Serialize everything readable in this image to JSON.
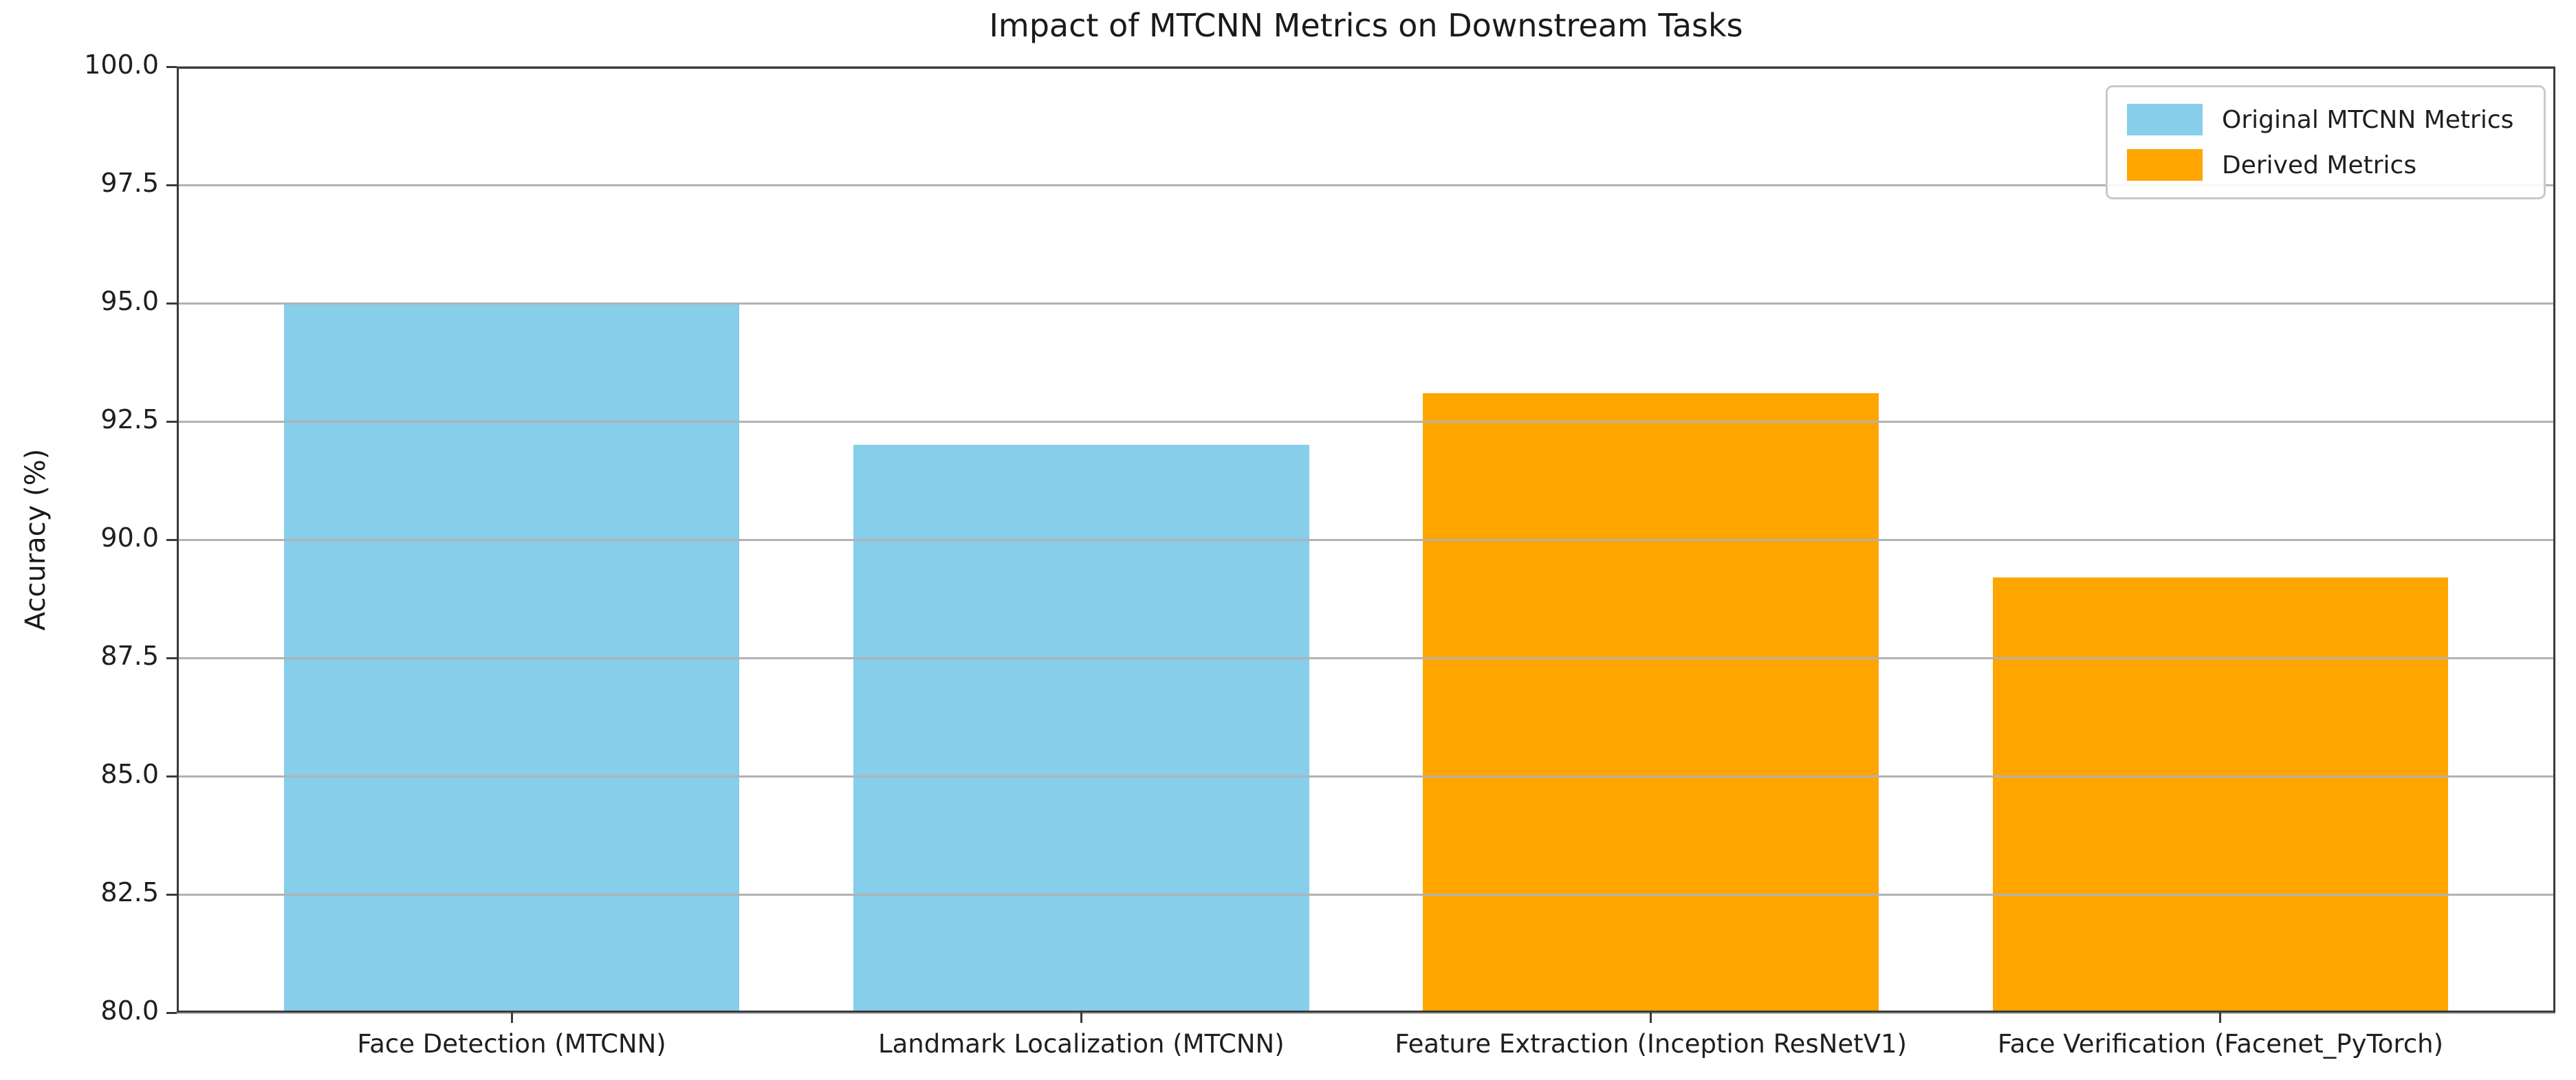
{
  "chart_data": {
    "type": "bar",
    "title": "Impact of MTCNN Metrics on Downstream Tasks",
    "xlabel": "",
    "ylabel": "Accuracy (%)",
    "ylim": [
      80.0,
      100.0
    ],
    "ytick_labels": [
      "80.0",
      "82.5",
      "85.0",
      "87.5",
      "90.0",
      "92.5",
      "95.0",
      "97.5",
      "100.0"
    ],
    "categories": [
      "Face Detection (MTCNN)",
      "Landmark Localization (MTCNN)",
      "Feature Extraction (Inception ResNetV1)",
      "Face Verification (Facenet_PyTorch)"
    ],
    "values": [
      95.0,
      92.0,
      93.1,
      89.2
    ],
    "bar_colors": [
      "#87CEEB",
      "#87CEEB",
      "#FFA500",
      "#FFA500"
    ],
    "bar_groups": [
      "Original MTCNN Metrics",
      "Original MTCNN Metrics",
      "Derived Metrics",
      "Derived Metrics"
    ],
    "legend": [
      {
        "label": "Original MTCNN Metrics",
        "color": "#87CEEB"
      },
      {
        "label": "Derived Metrics",
        "color": "#FFA500"
      }
    ],
    "legend_position": "upper right",
    "grid": "horizontal gridlines on, drawn over bars",
    "grid_color": "#b2b2b2",
    "spine_color": "#3a3a3a",
    "background_color": "#ffffff"
  }
}
